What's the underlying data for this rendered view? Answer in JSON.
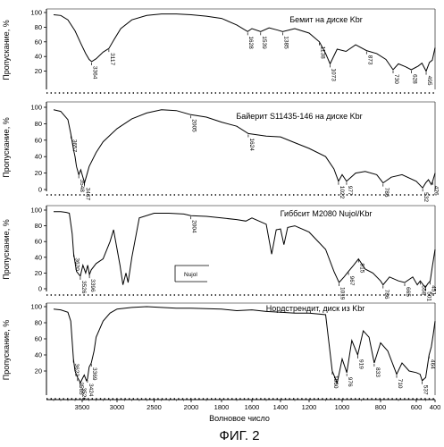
{
  "figure": {
    "caption": "ФИГ. 2",
    "xlabel": "Волновое число",
    "x_ticks": [
      {
        "value": 3500,
        "label": "3500"
      },
      {
        "value": 3000,
        "label": "3000"
      },
      {
        "value": 2500,
        "label": "2500"
      },
      {
        "value": 2000,
        "label": "2000"
      },
      {
        "value": 1800,
        "label": "1800"
      },
      {
        "value": 1600,
        "label": "1600"
      },
      {
        "value": 1400,
        "label": "1400"
      },
      {
        "value": 1200,
        "label": "1200"
      },
      {
        "value": 1000,
        "label": "1000"
      },
      {
        "value": 800,
        "label": "800"
      },
      {
        "value": 600,
        "label": "600"
      },
      {
        "value": 400,
        "label": "400"
      }
    ]
  },
  "chart_data": [
    {
      "type": "line",
      "title": "Бемит на диске Kbr",
      "ylabel": "Пропускание, %",
      "ylim": [
        0,
        100
      ],
      "y_ticks": [
        20,
        40,
        60,
        80,
        100
      ],
      "x": [
        3900,
        3800,
        3700,
        3600,
        3520,
        3450,
        3400,
        3364,
        3300,
        3200,
        3117,
        3050,
        2950,
        2800,
        2600,
        2400,
        2200,
        2000,
        1900,
        1800,
        1700,
        1628,
        1600,
        1539,
        1480,
        1420,
        1385,
        1300,
        1200,
        1138,
        1100,
        1073,
        1030,
        980,
        930,
        873,
        820,
        770,
        730,
        700,
        660,
        628,
        580,
        540,
        495,
        460,
        430,
        400
      ],
      "y": [
        97,
        96,
        90,
        75,
        58,
        44,
        36,
        33,
        37,
        46,
        51,
        62,
        78,
        90,
        96,
        98,
        98,
        97,
        95,
        92,
        83,
        74,
        78,
        74,
        79,
        76,
        74,
        78,
        72,
        60,
        44,
        30,
        50,
        47,
        56,
        48,
        44,
        36,
        22,
        30,
        26,
        22,
        27,
        31,
        20,
        32,
        35,
        52
      ],
      "peak_labels": [
        {
          "x": 3364,
          "label": "3364"
        },
        {
          "x": 3117,
          "label": "3117"
        },
        {
          "x": 1628,
          "label": "1628"
        },
        {
          "x": 1539,
          "label": "1539"
        },
        {
          "x": 1385,
          "label": "1385"
        },
        {
          "x": 1138,
          "label": "1138"
        },
        {
          "x": 1073,
          "label": "1073"
        },
        {
          "x": 873,
          "label": "873"
        },
        {
          "x": 730,
          "label": "730"
        },
        {
          "x": 628,
          "label": "628"
        },
        {
          "x": 495,
          "label": "495"
        }
      ]
    },
    {
      "type": "line",
      "title": "Байерит S11435-146 на диске Kbr",
      "ylabel": "Пропускание, %",
      "ylim": [
        0,
        100
      ],
      "y_ticks": [
        0,
        20,
        40,
        60,
        80,
        100
      ],
      "x": [
        3900,
        3800,
        3700,
        3660,
        3620,
        3600,
        3580,
        3548,
        3520,
        3480,
        3467,
        3440,
        3400,
        3300,
        3200,
        3000,
        2800,
        2600,
        2400,
        2200,
        2005,
        1900,
        1800,
        1700,
        1624,
        1500,
        1400,
        1300,
        1200,
        1100,
        1050,
        1022,
        1000,
        977,
        930,
        880,
        820,
        786,
        740,
        680,
        600,
        532,
        500,
        470,
        440,
        426,
        400
      ],
      "y": [
        97,
        95,
        85,
        68,
        48,
        40,
        28,
        18,
        24,
        12,
        8,
        16,
        28,
        45,
        58,
        74,
        86,
        93,
        97,
        96,
        91,
        88,
        82,
        77,
        68,
        65,
        64,
        57,
        50,
        40,
        25,
        10,
        18,
        10,
        20,
        22,
        18,
        8,
        15,
        18,
        10,
        2,
        8,
        12,
        6,
        10,
        20
      ],
      "peak_labels": [
        {
          "x": 3657,
          "label": "3657"
        },
        {
          "x": 3548,
          "label": "3548"
        },
        {
          "x": 3467,
          "label": "3467"
        },
        {
          "x": 2005,
          "label": "2005"
        },
        {
          "x": 1624,
          "label": "1624"
        },
        {
          "x": 1022,
          "label": "1022"
        },
        {
          "x": 977,
          "label": "977"
        },
        {
          "x": 786,
          "label": "786"
        },
        {
          "x": 532,
          "label": "532"
        },
        {
          "x": 426,
          "label": "426"
        }
      ]
    },
    {
      "type": "line",
      "title": "Гиббсит M2080 Nujol/Kbr",
      "ylabel": "Пропускание, %",
      "ylim": [
        0,
        100
      ],
      "y_ticks": [
        0,
        20,
        40,
        60,
        80,
        100
      ],
      "annotations": [
        {
          "text": "Nujol"
        }
      ],
      "x": [
        3900,
        3800,
        3720,
        3680,
        3640,
        3620,
        3580,
        3526,
        3490,
        3450,
        3420,
        3396,
        3370,
        3300,
        3200,
        3100,
        3050,
        2960,
        2920,
        2880,
        2850,
        2800,
        2700,
        2500,
        2300,
        2100,
        2004,
        1900,
        1800,
        1700,
        1640,
        1600,
        1500,
        1462,
        1430,
        1400,
        1376,
        1350,
        1300,
        1200,
        1100,
        1050,
        1019,
        990,
        967,
        940,
        915,
        880,
        840,
        800,
        786,
        750,
        700,
        665,
        620,
        590,
        558,
        520,
        501,
        480,
        451,
        430,
        400
      ],
      "y": [
        98,
        98,
        97,
        96,
        70,
        45,
        22,
        16,
        30,
        20,
        30,
        18,
        24,
        32,
        38,
        60,
        75,
        30,
        5,
        20,
        8,
        40,
        90,
        96,
        96,
        95,
        93,
        92,
        90,
        88,
        86,
        90,
        82,
        44,
        75,
        76,
        56,
        78,
        80,
        72,
        50,
        22,
        8,
        15,
        22,
        30,
        38,
        25,
        20,
        10,
        5,
        15,
        10,
        8,
        15,
        5,
        10,
        4,
        2,
        6,
        10,
        28,
        50
      ],
      "peak_labels": [
        {
          "x": 3620,
          "label": "3620"
        },
        {
          "x": 3526,
          "label": "3526"
        },
        {
          "x": 3396,
          "label": "3396"
        },
        {
          "x": 2004,
          "label": "2004"
        },
        {
          "x": 1019,
          "label": "1019"
        },
        {
          "x": 967,
          "label": "967"
        },
        {
          "x": 915,
          "label": "915"
        },
        {
          "x": 786,
          "label": "786"
        },
        {
          "x": 665,
          "label": "665"
        },
        {
          "x": 558,
          "label": "558"
        },
        {
          "x": 501,
          "label": "501"
        },
        {
          "x": 451,
          "label": "451"
        }
      ]
    },
    {
      "type": "line",
      "title": "Нордстрендит, диск из Kbr",
      "ylabel": "Пропускание, %",
      "ylim": [
        0,
        100
      ],
      "y_ticks": [
        20,
        40,
        60,
        80,
        100
      ],
      "x": [
        3900,
        3800,
        3700,
        3660,
        3623,
        3600,
        3565,
        3540,
        3526,
        3500,
        3470,
        3440,
        3424,
        3400,
        3369,
        3330,
        3300,
        3200,
        3100,
        3000,
        2800,
        2600,
        2400,
        2200,
        2000,
        1800,
        1700,
        1600,
        1500,
        1400,
        1300,
        1200,
        1100,
        1060,
        1030,
        1000,
        976,
        950,
        919,
        890,
        860,
        833,
        800,
        760,
        710,
        680,
        640,
        600,
        560,
        537,
        500,
        464,
        440,
        420,
        400
      ],
      "y": [
        97,
        96,
        93,
        82,
        35,
        20,
        12,
        8,
        5,
        10,
        15,
        8,
        10,
        25,
        30,
        45,
        62,
        82,
        92,
        97,
        99,
        100,
        99,
        98,
        98,
        97,
        95,
        96,
        94,
        93,
        92,
        92,
        90,
        20,
        5,
        35,
        18,
        58,
        40,
        70,
        62,
        30,
        55,
        45,
        16,
        30,
        20,
        18,
        16,
        8,
        12,
        40,
        50,
        65,
        82
      ],
      "peak_labels": [
        {
          "x": 3623,
          "label": "3623"
        },
        {
          "x": 3565,
          "label": "3565"
        },
        {
          "x": 3526,
          "label": "3526"
        },
        {
          "x": 3424,
          "label": "3424"
        },
        {
          "x": 3369,
          "label": "3369"
        },
        {
          "x": 1060,
          "label": "1060"
        },
        {
          "x": 976,
          "label": "976"
        },
        {
          "x": 919,
          "label": "919"
        },
        {
          "x": 833,
          "label": "833"
        },
        {
          "x": 710,
          "label": "710"
        },
        {
          "x": 537,
          "label": "537"
        },
        {
          "x": 464,
          "label": "464"
        }
      ]
    }
  ]
}
